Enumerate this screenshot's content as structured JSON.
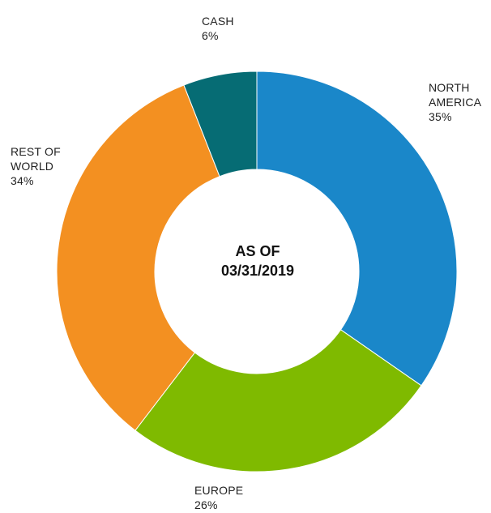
{
  "chart_data": {
    "type": "pie",
    "donut": true,
    "center_label": [
      "AS OF",
      "03/31/2019"
    ],
    "slices": [
      {
        "name": "NORTH AMERICA",
        "label_lines": [
          "NORTH",
          "AMERICA"
        ],
        "value_label": "35%",
        "value": 35,
        "color": "#1a87c9"
      },
      {
        "name": "EUROPE",
        "label_lines": [
          "EUROPE"
        ],
        "value_label": "26%",
        "value": 26,
        "color": "#7fba00"
      },
      {
        "name": "REST OF WORLD",
        "label_lines": [
          "REST OF",
          "WORLD"
        ],
        "value_label": "34%",
        "value": 34,
        "color": "#f39021"
      },
      {
        "name": "CASH",
        "label_lines": [
          "CASH"
        ],
        "value_label": "6%",
        "value": 6,
        "color": "#066c74"
      }
    ],
    "legend": "none",
    "grid": false
  }
}
